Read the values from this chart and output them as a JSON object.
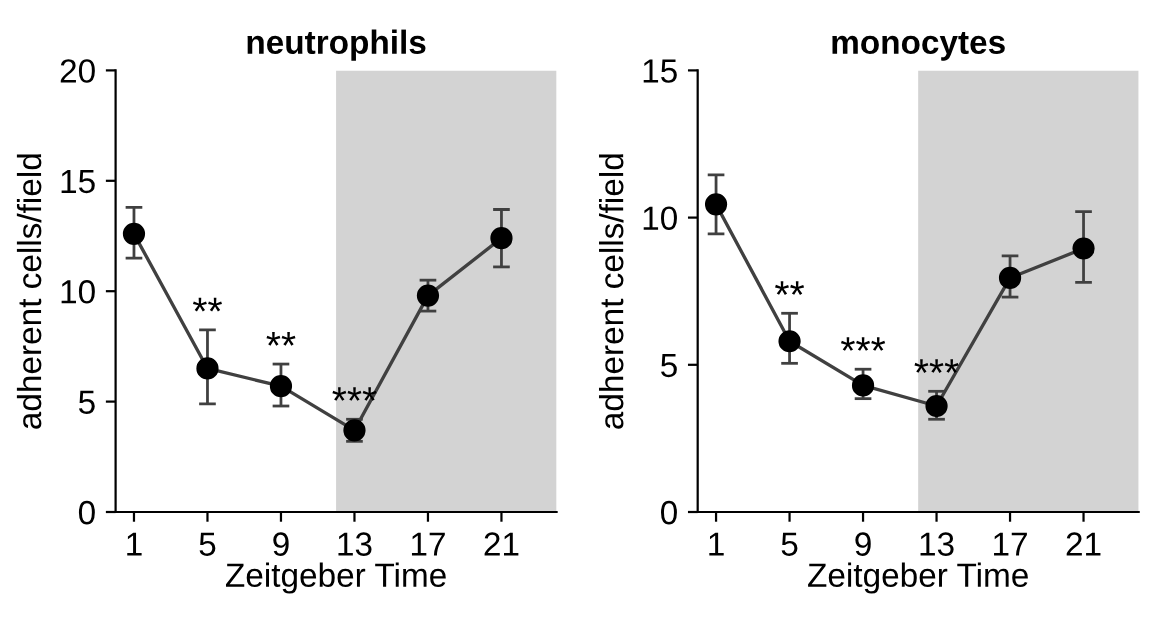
{
  "chart_data": [
    {
      "type": "line",
      "title": "neutrophils",
      "xlabel": "Zeitgeber Time",
      "ylabel": "adherent cells/field",
      "x": [
        1,
        5,
        9,
        13,
        17,
        21
      ],
      "series": [
        {
          "color": "#000000",
          "values": [
            12.6,
            6.5,
            5.7,
            3.7,
            9.8,
            12.4
          ],
          "errors": [
            [
              11.5,
              13.8
            ],
            [
              4.9,
              8.25
            ],
            [
              4.8,
              6.7
            ],
            [
              3.2,
              4.2
            ],
            [
              9.1,
              10.5
            ],
            [
              11.1,
              13.7
            ]
          ]
        }
      ],
      "xlim": [
        0,
        24
      ],
      "xticks": [
        1,
        5,
        9,
        13,
        17,
        21
      ],
      "ylim": [
        0,
        20
      ],
      "yticks": [
        0,
        5,
        10,
        15,
        20
      ],
      "bands": [
        {
          "axis": "x",
          "from": 12,
          "to": 24,
          "color": "#d3d3d3"
        }
      ],
      "marker": "circle",
      "line_style": "solid",
      "annotations": [
        {
          "text": "**",
          "x": 5,
          "y": 8.25
        },
        {
          "text": "**",
          "x": 9,
          "y": 6.7
        },
        {
          "text": "***",
          "x": 13,
          "y": 4.2
        }
      ]
    },
    {
      "type": "line",
      "title": "monocytes",
      "xlabel": "Zeitgeber Time",
      "ylabel": "adherent cells/field",
      "x": [
        1,
        5,
        9,
        13,
        17,
        21
      ],
      "series": [
        {
          "color": "#000000",
          "values": [
            10.45,
            5.8,
            4.3,
            3.6,
            7.95,
            8.95
          ],
          "errors": [
            [
              9.45,
              11.45
            ],
            [
              5.05,
              6.75
            ],
            [
              3.85,
              4.85
            ],
            [
              3.15,
              4.1
            ],
            [
              7.3,
              8.7
            ],
            [
              7.8,
              10.2
            ]
          ]
        }
      ],
      "xlim": [
        0,
        24
      ],
      "xticks": [
        1,
        5,
        9,
        13,
        17,
        21
      ],
      "ylim": [
        0,
        15
      ],
      "yticks": [
        0,
        5,
        10,
        15
      ],
      "bands": [
        {
          "axis": "x",
          "from": 12,
          "to": 24,
          "color": "#d3d3d3"
        }
      ],
      "marker": "circle",
      "line_style": "solid",
      "annotations": [
        {
          "text": "**",
          "x": 5,
          "y": 6.75
        },
        {
          "text": "***",
          "x": 9,
          "y": 4.85
        },
        {
          "text": "***",
          "x": 13,
          "y": 4.1
        }
      ]
    }
  ]
}
